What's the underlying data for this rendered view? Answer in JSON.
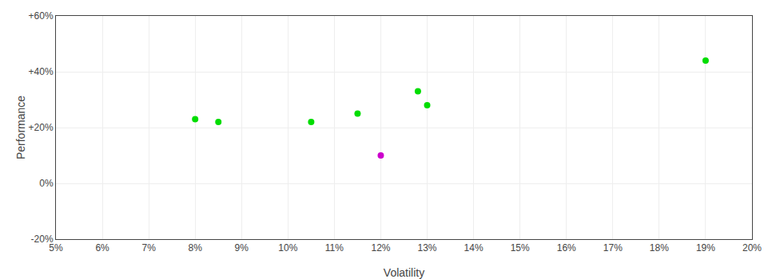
{
  "chart_data": {
    "type": "scatter",
    "xlabel": "Volatility",
    "ylabel": "Performance",
    "xlim": [
      0.05,
      0.2
    ],
    "ylim": [
      -0.2,
      0.6
    ],
    "xticks": [
      {
        "value": 0.05,
        "label": "5%"
      },
      {
        "value": 0.06,
        "label": "6%"
      },
      {
        "value": 0.07,
        "label": "7%"
      },
      {
        "value": 0.08,
        "label": "8%"
      },
      {
        "value": 0.09,
        "label": "9%"
      },
      {
        "value": 0.1,
        "label": "10%"
      },
      {
        "value": 0.11,
        "label": "11%"
      },
      {
        "value": 0.12,
        "label": "12%"
      },
      {
        "value": 0.13,
        "label": "13%"
      },
      {
        "value": 0.14,
        "label": "14%"
      },
      {
        "value": 0.15,
        "label": "15%"
      },
      {
        "value": 0.16,
        "label": "16%"
      },
      {
        "value": 0.17,
        "label": "17%"
      },
      {
        "value": 0.18,
        "label": "18%"
      },
      {
        "value": 0.19,
        "label": "19%"
      },
      {
        "value": 0.2,
        "label": "20%"
      }
    ],
    "yticks": [
      {
        "value": -0.2,
        "label": "-20%"
      },
      {
        "value": 0.0,
        "label": "0%"
      },
      {
        "value": 0.2,
        "label": "+20%"
      },
      {
        "value": 0.4,
        "label": "+40%"
      },
      {
        "value": 0.6,
        "label": "+60%"
      }
    ],
    "grid": true,
    "series": [
      {
        "color": "#00dd00",
        "marker": "circle",
        "x": [
          0.08,
          0.085,
          0.105,
          0.115,
          0.13,
          0.128,
          0.19
        ],
        "values": [
          0.23,
          0.22,
          0.22,
          0.25,
          0.28,
          0.33,
          0.44
        ]
      },
      {
        "color": "#cc00cc",
        "marker": "circle",
        "x": [
          0.12
        ],
        "values": [
          0.1
        ]
      }
    ]
  }
}
